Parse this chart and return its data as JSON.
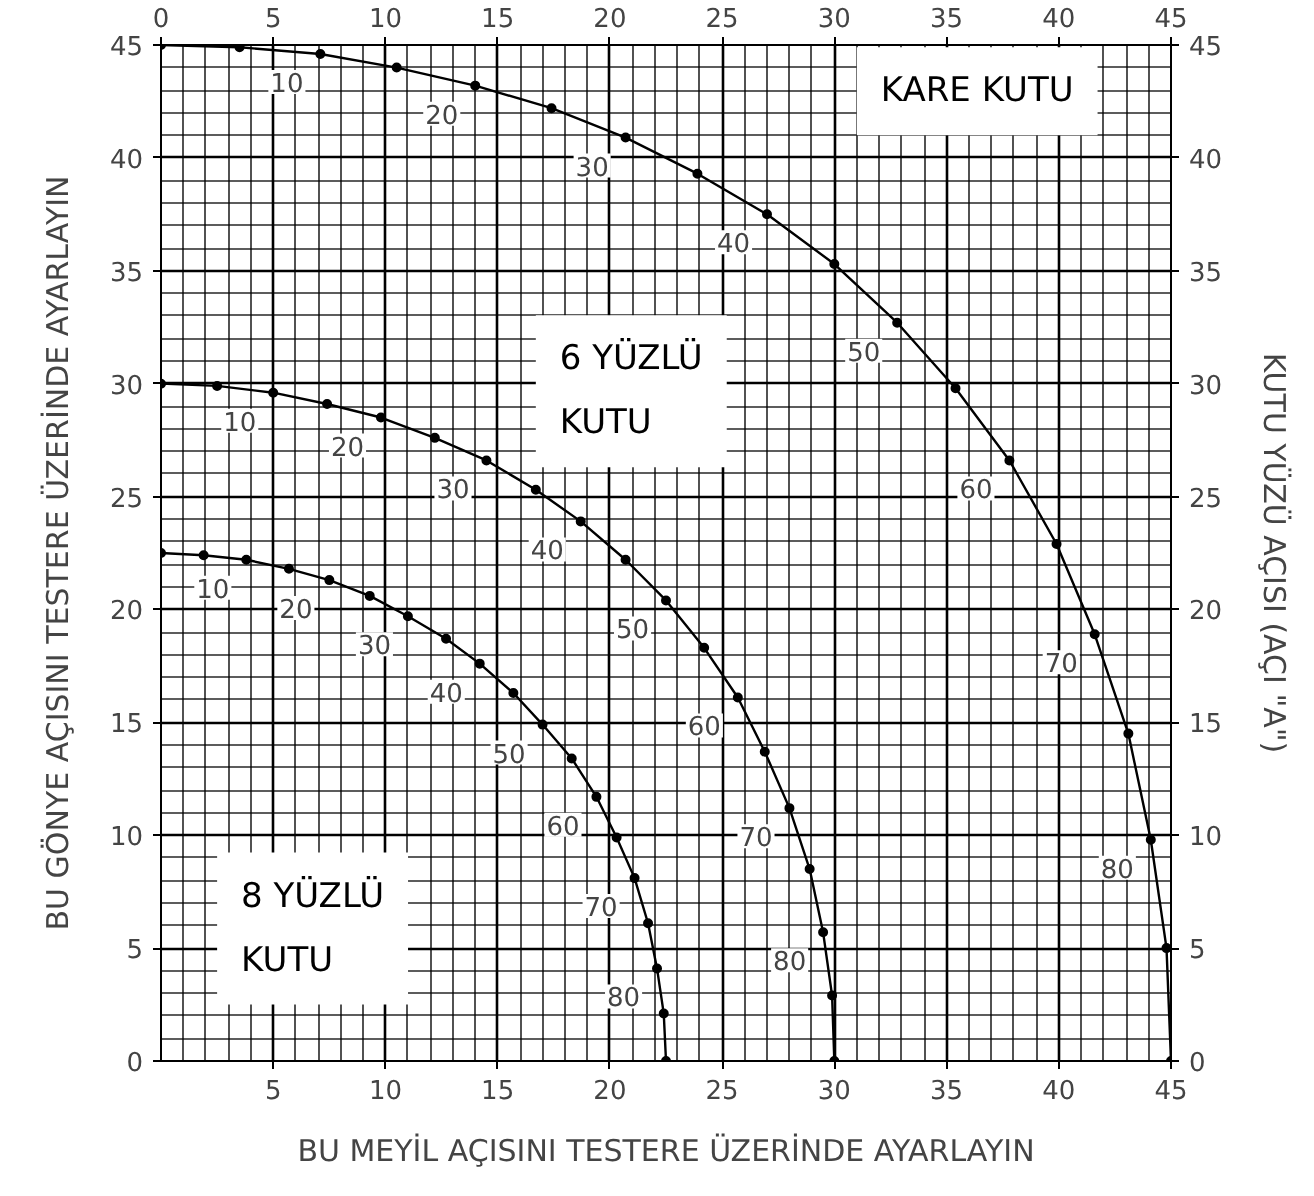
{
  "chart_data": {
    "type": "line",
    "xlabel": "BU MEYİL AÇISINI TESTERE ÜZERİNDE AYARLAYIN",
    "ylabel": "BU GÖNYE AÇISINI TESTERE ÜZERİNDE AYARLAYIN",
    "y2label": "KUTU YÜZÜ AÇISI (AÇI \"A\")",
    "xlim": [
      0,
      45
    ],
    "xticks": [
      5,
      10,
      15,
      20,
      25,
      30,
      35,
      40,
      45
    ],
    "x2lim": [
      0,
      45
    ],
    "x2ticks": [
      0,
      5,
      10,
      15,
      20,
      25,
      30,
      35,
      40,
      45
    ],
    "ylim": [
      0,
      45
    ],
    "yticks": [
      0,
      5,
      10,
      15,
      20,
      25,
      30,
      35,
      40,
      45
    ],
    "y2lim": [
      0,
      45
    ],
    "y2ticks": [
      0,
      5,
      10,
      15,
      20,
      25,
      30,
      35,
      40,
      45
    ],
    "grid": true,
    "marker": "circle",
    "line_style": "solid",
    "series": [
      {
        "name": "KARE KUTU",
        "color": "#000000",
        "x": [
          0,
          3.5,
          7.1,
          10.5,
          14.0,
          17.4,
          20.7,
          23.9,
          27.0,
          30.0,
          32.8,
          35.4,
          37.8,
          39.9,
          41.6,
          43.1,
          44.1,
          44.8,
          45
        ],
        "values": [
          45,
          44.9,
          44.6,
          44.0,
          43.2,
          42.2,
          40.9,
          39.3,
          37.5,
          35.3,
          32.7,
          29.8,
          26.6,
          22.9,
          18.9,
          14.5,
          9.8,
          5.0,
          0
        ]
      },
      {
        "name": "6 YÜZLÜ KUTU",
        "color": "#000000",
        "x": [
          0,
          2.5,
          5.0,
          7.4,
          9.8,
          12.2,
          14.5,
          16.7,
          18.7,
          20.7,
          22.5,
          24.2,
          25.7,
          26.9,
          28.0,
          28.9,
          29.5,
          29.9,
          30
        ],
        "values": [
          30,
          29.9,
          29.6,
          29.1,
          28.5,
          27.6,
          26.6,
          25.3,
          23.9,
          22.2,
          20.4,
          18.3,
          16.1,
          13.7,
          11.2,
          8.5,
          5.7,
          2.9,
          0
        ]
      },
      {
        "name": "8 YÜZLÜ KUTU",
        "color": "#000000",
        "x": [
          0,
          1.9,
          3.8,
          5.7,
          7.5,
          9.3,
          11.0,
          12.7,
          14.2,
          15.7,
          17.0,
          18.3,
          19.4,
          20.3,
          21.1,
          21.7,
          22.1,
          22.4,
          22.5
        ],
        "values": [
          22.5,
          22.4,
          22.2,
          21.8,
          21.3,
          20.6,
          19.7,
          18.7,
          17.6,
          16.3,
          14.9,
          13.4,
          11.7,
          9.9,
          8.1,
          6.1,
          4.1,
          2.1,
          0
        ]
      }
    ],
    "annotations": [
      {
        "text": "10",
        "x": 7.1,
        "y": 44.6
      },
      {
        "text": "20",
        "x": 14.0,
        "y": 43.2
      },
      {
        "text": "30",
        "x": 20.7,
        "y": 40.9
      },
      {
        "text": "40",
        "x": 27.0,
        "y": 37.5
      },
      {
        "text": "50",
        "x": 32.8,
        "y": 32.7
      },
      {
        "text": "60",
        "x": 37.8,
        "y": 26.6
      },
      {
        "text": "70",
        "x": 41.6,
        "y": 18.9
      },
      {
        "text": "80",
        "x": 44.1,
        "y": 9.8
      },
      {
        "text": "10",
        "x": 5.0,
        "y": 29.6
      },
      {
        "text": "20",
        "x": 9.8,
        "y": 28.5
      },
      {
        "text": "30",
        "x": 14.5,
        "y": 26.6
      },
      {
        "text": "40",
        "x": 18.7,
        "y": 23.9
      },
      {
        "text": "50",
        "x": 22.5,
        "y": 20.4
      },
      {
        "text": "60",
        "x": 25.7,
        "y": 16.1
      },
      {
        "text": "70",
        "x": 28.0,
        "y": 11.2
      },
      {
        "text": "80",
        "x": 29.5,
        "y": 5.7
      },
      {
        "text": "10",
        "x": 3.8,
        "y": 22.2
      },
      {
        "text": "20",
        "x": 7.5,
        "y": 21.3
      },
      {
        "text": "30",
        "x": 11.0,
        "y": 19.7
      },
      {
        "text": "40",
        "x": 14.2,
        "y": 17.6
      },
      {
        "text": "50",
        "x": 17.0,
        "y": 14.9
      },
      {
        "text": "60",
        "x": 19.4,
        "y": 11.7
      },
      {
        "text": "70",
        "x": 21.1,
        "y": 8.1
      },
      {
        "text": "80",
        "x": 22.1,
        "y": 4.1
      }
    ]
  }
}
